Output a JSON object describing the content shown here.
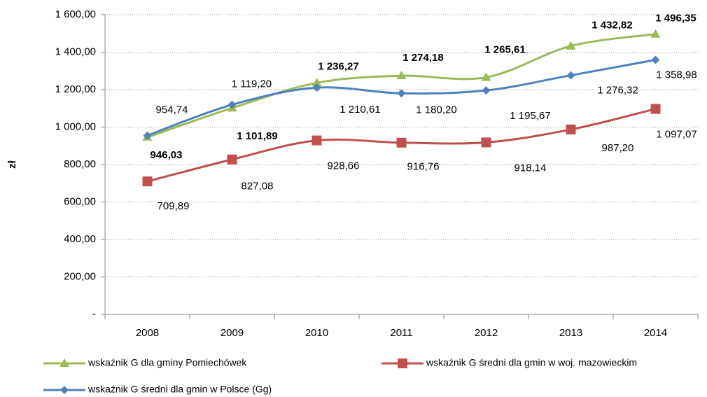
{
  "chart_data": {
    "type": "line",
    "y_label": "zł",
    "categories": [
      "2008",
      "2009",
      "2010",
      "2011",
      "2012",
      "2013",
      "2014"
    ],
    "series": [
      {
        "name": "wskaźnik G dla gminy Pomiechówek",
        "color": "#9bbb59",
        "marker": "triangle",
        "values": [
          946.03,
          1101.89,
          1236.27,
          1274.18,
          1265.61,
          1432.82,
          1496.35
        ],
        "value_labels": [
          "946,03",
          "1 101,89",
          "1 236,27",
          "1 274,18",
          "1 265,61",
          "1 432,82",
          "1 496,35"
        ]
      },
      {
        "name": "wskaźnik G średni dla gmin w woj. mazowieckim",
        "color": "#c0504d",
        "marker": "square",
        "values": [
          709.89,
          827.08,
          928.66,
          916.76,
          918.14,
          987.2,
          1097.07
        ],
        "value_labels": [
          "709,89",
          "827,08",
          "928,66",
          "916,76",
          "918,14",
          "987,20",
          "1 097,07"
        ]
      },
      {
        "name": "wskaźnik G średni dla gmin w Polsce (Gg)",
        "color": "#4f81bd",
        "marker": "diamond",
        "values": [
          954.74,
          1119.2,
          1210.61,
          1180.2,
          1195.67,
          1276.32,
          1358.98
        ],
        "value_labels": [
          "954,74",
          "1 119,20",
          "1 210,61",
          "1 180,20",
          "1 195,67",
          "1 276,32",
          "1 358,98"
        ]
      }
    ],
    "ylim": [
      0,
      1600
    ],
    "yticks": [
      {
        "value": 0,
        "label": "-"
      },
      {
        "value": 200,
        "label": "200,00"
      },
      {
        "value": 400,
        "label": "400,00"
      },
      {
        "value": 600,
        "label": "600,00"
      },
      {
        "value": 800,
        "label": "800,00"
      },
      {
        "value": 1000,
        "label": "1 000,00"
      },
      {
        "value": 1200,
        "label": "1 200,00"
      },
      {
        "value": 1400,
        "label": "1 400,00"
      },
      {
        "value": 1600,
        "label": "1 600,00"
      }
    ],
    "grid": true,
    "smooth": true,
    "legend": "bottom"
  }
}
